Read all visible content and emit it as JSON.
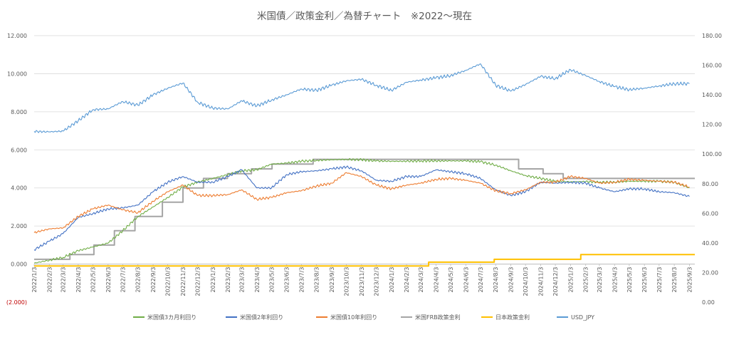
{
  "chart_data": {
    "type": "line",
    "title": "米国債／政策金利／為替チャート　※2022～現在",
    "x_ticks": [
      "2022/1/3",
      "2022/2/3",
      "2022/3/3",
      "2022/4/3",
      "2022/5/3",
      "2022/6/3",
      "2022/7/3",
      "2022/8/3",
      "2022/9/3",
      "2022/10/3",
      "2022/11/3",
      "2022/12/3",
      "2023/1/3",
      "2023/2/3",
      "2023/3/3",
      "2023/4/3",
      "2023/5/3",
      "2023/6/3",
      "2023/7/3",
      "2023/8/3",
      "2023/9/3",
      "2023/10/3",
      "2023/11/3",
      "2023/12/3",
      "2024/1/3",
      "2024/2/3",
      "2024/3/3",
      "2024/4/3",
      "2024/5/3",
      "2024/6/3",
      "2024/7/3",
      "2024/8/3",
      "2024/9/3",
      "2024/10/3",
      "2024/11/3",
      "2024/12/3",
      "2025/1/3",
      "2025/2/3",
      "2025/3/3",
      "2025/4/3",
      "2025/5/3",
      "2025/6/3",
      "2025/7/3",
      "2025/8/3",
      "2025/9/3"
    ],
    "y_left": {
      "min": -2,
      "max": 12,
      "ticks": [
        "(2.000)",
        "0.000",
        "2.000",
        "4.000",
        "6.000",
        "8.000",
        "10.000",
        "12.000"
      ]
    },
    "y_right": {
      "min": 0,
      "max": 180,
      "ticks": [
        "0.00",
        "20.00",
        "40.00",
        "60.00",
        "80.00",
        "100.00",
        "120.00",
        "140.00",
        "160.00",
        "180.00"
      ]
    },
    "grid": "horizontal",
    "legend_position": "bottom",
    "series": [
      {
        "name": "米国債3カ月利回り",
        "axis": "left",
        "color": "#70ad47",
        "points": [
          [
            "2022/1/3",
            0.05
          ],
          [
            "2022/2/3",
            0.2
          ],
          [
            "2022/3/3",
            0.35
          ],
          [
            "2022/4/3",
            0.7
          ],
          [
            "2022/5/3",
            0.9
          ],
          [
            "2022/6/3",
            1.1
          ],
          [
            "2022/7/3",
            1.75
          ],
          [
            "2022/8/3",
            2.5
          ],
          [
            "2022/9/3",
            3.0
          ],
          [
            "2022/10/3",
            3.5
          ],
          [
            "2022/11/3",
            4.05
          ],
          [
            "2022/12/3",
            4.3
          ],
          [
            "2023/1/3",
            4.5
          ],
          [
            "2023/2/3",
            4.7
          ],
          [
            "2023/3/3",
            4.9
          ],
          [
            "2023/4/3",
            4.95
          ],
          [
            "2023/5/3",
            5.25
          ],
          [
            "2023/6/3",
            5.3
          ],
          [
            "2023/7/3",
            5.4
          ],
          [
            "2023/8/3",
            5.45
          ],
          [
            "2023/9/3",
            5.48
          ],
          [
            "2023/10/3",
            5.5
          ],
          [
            "2023/11/3",
            5.48
          ],
          [
            "2023/12/3",
            5.42
          ],
          [
            "2024/1/3",
            5.4
          ],
          [
            "2024/2/3",
            5.4
          ],
          [
            "2024/3/3",
            5.42
          ],
          [
            "2024/4/3",
            5.42
          ],
          [
            "2024/5/3",
            5.42
          ],
          [
            "2024/6/3",
            5.42
          ],
          [
            "2024/7/3",
            5.38
          ],
          [
            "2024/8/3",
            5.2
          ],
          [
            "2024/9/3",
            4.9
          ],
          [
            "2024/10/3",
            4.65
          ],
          [
            "2024/11/3",
            4.5
          ],
          [
            "2024/12/3",
            4.35
          ],
          [
            "2025/1/3",
            4.32
          ],
          [
            "2025/2/3",
            4.33
          ],
          [
            "2025/3/3",
            4.3
          ],
          [
            "2025/4/3",
            4.3
          ],
          [
            "2025/5/3",
            4.35
          ],
          [
            "2025/6/3",
            4.35
          ],
          [
            "2025/7/3",
            4.35
          ],
          [
            "2025/8/3",
            4.3
          ],
          [
            "2025/9/3",
            4.0
          ]
        ]
      },
      {
        "name": "米国債2年利回り",
        "axis": "left",
        "color": "#4472c4",
        "points": [
          [
            "2022/1/3",
            0.75
          ],
          [
            "2022/2/3",
            1.2
          ],
          [
            "2022/3/3",
            1.6
          ],
          [
            "2022/4/3",
            2.45
          ],
          [
            "2022/5/3",
            2.65
          ],
          [
            "2022/6/3",
            2.9
          ],
          [
            "2022/7/3",
            2.95
          ],
          [
            "2022/8/3",
            3.1
          ],
          [
            "2022/9/3",
            3.8
          ],
          [
            "2022/10/3",
            4.3
          ],
          [
            "2022/11/3",
            4.6
          ],
          [
            "2022/12/3",
            4.3
          ],
          [
            "2023/1/3",
            4.3
          ],
          [
            "2023/2/3",
            4.6
          ],
          [
            "2023/3/3",
            4.95
          ],
          [
            "2023/4/3",
            4.0
          ],
          [
            "2023/5/3",
            4.0
          ],
          [
            "2023/6/3",
            4.7
          ],
          [
            "2023/7/3",
            4.85
          ],
          [
            "2023/8/3",
            4.9
          ],
          [
            "2023/9/3",
            5.0
          ],
          [
            "2023/10/3",
            5.1
          ],
          [
            "2023/11/3",
            4.9
          ],
          [
            "2023/12/3",
            4.4
          ],
          [
            "2024/1/3",
            4.35
          ],
          [
            "2024/2/3",
            4.6
          ],
          [
            "2024/3/3",
            4.6
          ],
          [
            "2024/4/3",
            4.95
          ],
          [
            "2024/5/3",
            4.85
          ],
          [
            "2024/6/3",
            4.75
          ],
          [
            "2024/7/3",
            4.5
          ],
          [
            "2024/8/3",
            3.9
          ],
          [
            "2024/9/3",
            3.6
          ],
          [
            "2024/10/3",
            3.8
          ],
          [
            "2024/11/3",
            4.3
          ],
          [
            "2024/12/3",
            4.25
          ],
          [
            "2025/1/3",
            4.3
          ],
          [
            "2025/2/3",
            4.25
          ],
          [
            "2025/3/3",
            4.0
          ],
          [
            "2025/4/3",
            3.8
          ],
          [
            "2025/5/3",
            3.95
          ],
          [
            "2025/6/3",
            3.95
          ],
          [
            "2025/7/3",
            3.8
          ],
          [
            "2025/8/3",
            3.75
          ],
          [
            "2025/9/3",
            3.55
          ]
        ]
      },
      {
        "name": "米国債10年利回り",
        "axis": "left",
        "color": "#ed7d31",
        "points": [
          [
            "2022/1/3",
            1.65
          ],
          [
            "2022/2/3",
            1.85
          ],
          [
            "2022/3/3",
            1.9
          ],
          [
            "2022/4/3",
            2.5
          ],
          [
            "2022/5/3",
            2.9
          ],
          [
            "2022/6/3",
            3.1
          ],
          [
            "2022/7/3",
            2.85
          ],
          [
            "2022/8/3",
            2.7
          ],
          [
            "2022/9/3",
            3.3
          ],
          [
            "2022/10/3",
            3.8
          ],
          [
            "2022/11/3",
            4.15
          ],
          [
            "2022/12/3",
            3.6
          ],
          [
            "2023/1/3",
            3.6
          ],
          [
            "2023/2/3",
            3.65
          ],
          [
            "2023/3/3",
            3.9
          ],
          [
            "2023/4/3",
            3.4
          ],
          [
            "2023/5/3",
            3.5
          ],
          [
            "2023/6/3",
            3.75
          ],
          [
            "2023/7/3",
            3.85
          ],
          [
            "2023/8/3",
            4.1
          ],
          [
            "2023/9/3",
            4.25
          ],
          [
            "2023/10/3",
            4.8
          ],
          [
            "2023/11/3",
            4.6
          ],
          [
            "2023/12/3",
            4.15
          ],
          [
            "2024/1/3",
            3.95
          ],
          [
            "2024/2/3",
            4.15
          ],
          [
            "2024/3/3",
            4.25
          ],
          [
            "2024/4/3",
            4.45
          ],
          [
            "2024/5/3",
            4.5
          ],
          [
            "2024/6/3",
            4.4
          ],
          [
            "2024/7/3",
            4.25
          ],
          [
            "2024/8/3",
            3.85
          ],
          [
            "2024/9/3",
            3.7
          ],
          [
            "2024/10/3",
            3.9
          ],
          [
            "2024/11/3",
            4.3
          ],
          [
            "2024/12/3",
            4.3
          ],
          [
            "2025/1/3",
            4.6
          ],
          [
            "2025/2/3",
            4.5
          ],
          [
            "2025/3/3",
            4.25
          ],
          [
            "2025/4/3",
            4.3
          ],
          [
            "2025/5/3",
            4.45
          ],
          [
            "2025/6/3",
            4.4
          ],
          [
            "2025/7/3",
            4.35
          ],
          [
            "2025/8/3",
            4.3
          ],
          [
            "2025/9/3",
            4.05
          ]
        ]
      },
      {
        "name": "米国FRB政策金利",
        "axis": "left",
        "color": "#a5a5a5",
        "points": [
          [
            "2022/1/3",
            0.25
          ],
          [
            "2022/3/17",
            0.25
          ],
          [
            "2022/3/17",
            0.5
          ],
          [
            "2022/5/5",
            0.5
          ],
          [
            "2022/5/5",
            1.0
          ],
          [
            "2022/6/16",
            1.0
          ],
          [
            "2022/6/16",
            1.75
          ],
          [
            "2022/7/28",
            1.75
          ],
          [
            "2022/7/28",
            2.5
          ],
          [
            "2022/9/22",
            2.5
          ],
          [
            "2022/9/22",
            3.25
          ],
          [
            "2022/11/3",
            3.25
          ],
          [
            "2022/11/3",
            4.0
          ],
          [
            "2022/12/15",
            4.0
          ],
          [
            "2022/12/15",
            4.5
          ],
          [
            "2023/2/2",
            4.5
          ],
          [
            "2023/2/2",
            4.75
          ],
          [
            "2023/3/23",
            4.75
          ],
          [
            "2023/3/23",
            5.0
          ],
          [
            "2023/5/4",
            5.0
          ],
          [
            "2023/5/4",
            5.25
          ],
          [
            "2023/7/27",
            5.25
          ],
          [
            "2023/7/27",
            5.5
          ],
          [
            "2024/9/19",
            5.5
          ],
          [
            "2024/9/19",
            5.0
          ],
          [
            "2024/11/8",
            5.0
          ],
          [
            "2024/11/8",
            4.75
          ],
          [
            "2024/12/19",
            4.75
          ],
          [
            "2024/12/19",
            4.5
          ],
          [
            "2025/9/14",
            4.5
          ]
        ]
      },
      {
        "name": "日本政策金利",
        "axis": "left",
        "color": "#ffc000",
        "points": [
          [
            "2022/1/3",
            -0.1
          ],
          [
            "2024/3/19",
            -0.1
          ],
          [
            "2024/3/19",
            0.1
          ],
          [
            "2024/7/31",
            0.1
          ],
          [
            "2024/7/31",
            0.25
          ],
          [
            "2025/1/24",
            0.25
          ],
          [
            "2025/1/24",
            0.5
          ],
          [
            "2025/9/14",
            0.5
          ]
        ]
      },
      {
        "name": "USD_JPY",
        "axis": "right",
        "color": "#5b9bd5",
        "points": [
          [
            "2022/1/3",
            115.3
          ],
          [
            "2022/2/3",
            115.0
          ],
          [
            "2022/3/3",
            115.5
          ],
          [
            "2022/4/3",
            122.5
          ],
          [
            "2022/5/3",
            130.0
          ],
          [
            "2022/6/3",
            130.5
          ],
          [
            "2022/7/3",
            135.5
          ],
          [
            "2022/8/3",
            133.0
          ],
          [
            "2022/9/3",
            140.0
          ],
          [
            "2022/10/3",
            144.5
          ],
          [
            "2022/11/3",
            148.0
          ],
          [
            "2022/12/3",
            135.0
          ],
          [
            "2023/1/3",
            131.0
          ],
          [
            "2023/2/3",
            130.5
          ],
          [
            "2023/3/3",
            136.0
          ],
          [
            "2023/4/3",
            132.5
          ],
          [
            "2023/5/3",
            136.5
          ],
          [
            "2023/6/3",
            140.0
          ],
          [
            "2023/7/3",
            144.0
          ],
          [
            "2023/8/3",
            143.0
          ],
          [
            "2023/9/3",
            146.5
          ],
          [
            "2023/10/3",
            149.5
          ],
          [
            "2023/11/3",
            150.5
          ],
          [
            "2023/12/3",
            146.5
          ],
          [
            "2024/1/3",
            143.0
          ],
          [
            "2024/2/3",
            148.5
          ],
          [
            "2024/3/3",
            150.0
          ],
          [
            "2024/4/3",
            151.5
          ],
          [
            "2024/5/3",
            153.0
          ],
          [
            "2024/6/3",
            156.5
          ],
          [
            "2024/7/3",
            161.0
          ],
          [
            "2024/8/3",
            146.5
          ],
          [
            "2024/9/3",
            142.5
          ],
          [
            "2024/10/3",
            147.0
          ],
          [
            "2024/11/3",
            152.5
          ],
          [
            "2024/12/3",
            151.0
          ],
          [
            "2025/1/3",
            157.0
          ],
          [
            "2025/2/3",
            153.0
          ],
          [
            "2025/3/3",
            149.0
          ],
          [
            "2025/4/3",
            145.5
          ],
          [
            "2025/5/3",
            143.5
          ],
          [
            "2025/6/3",
            144.5
          ],
          [
            "2025/7/3",
            146.0
          ],
          [
            "2025/8/3",
            147.5
          ],
          [
            "2025/9/3",
            147.5
          ]
        ]
      }
    ]
  }
}
